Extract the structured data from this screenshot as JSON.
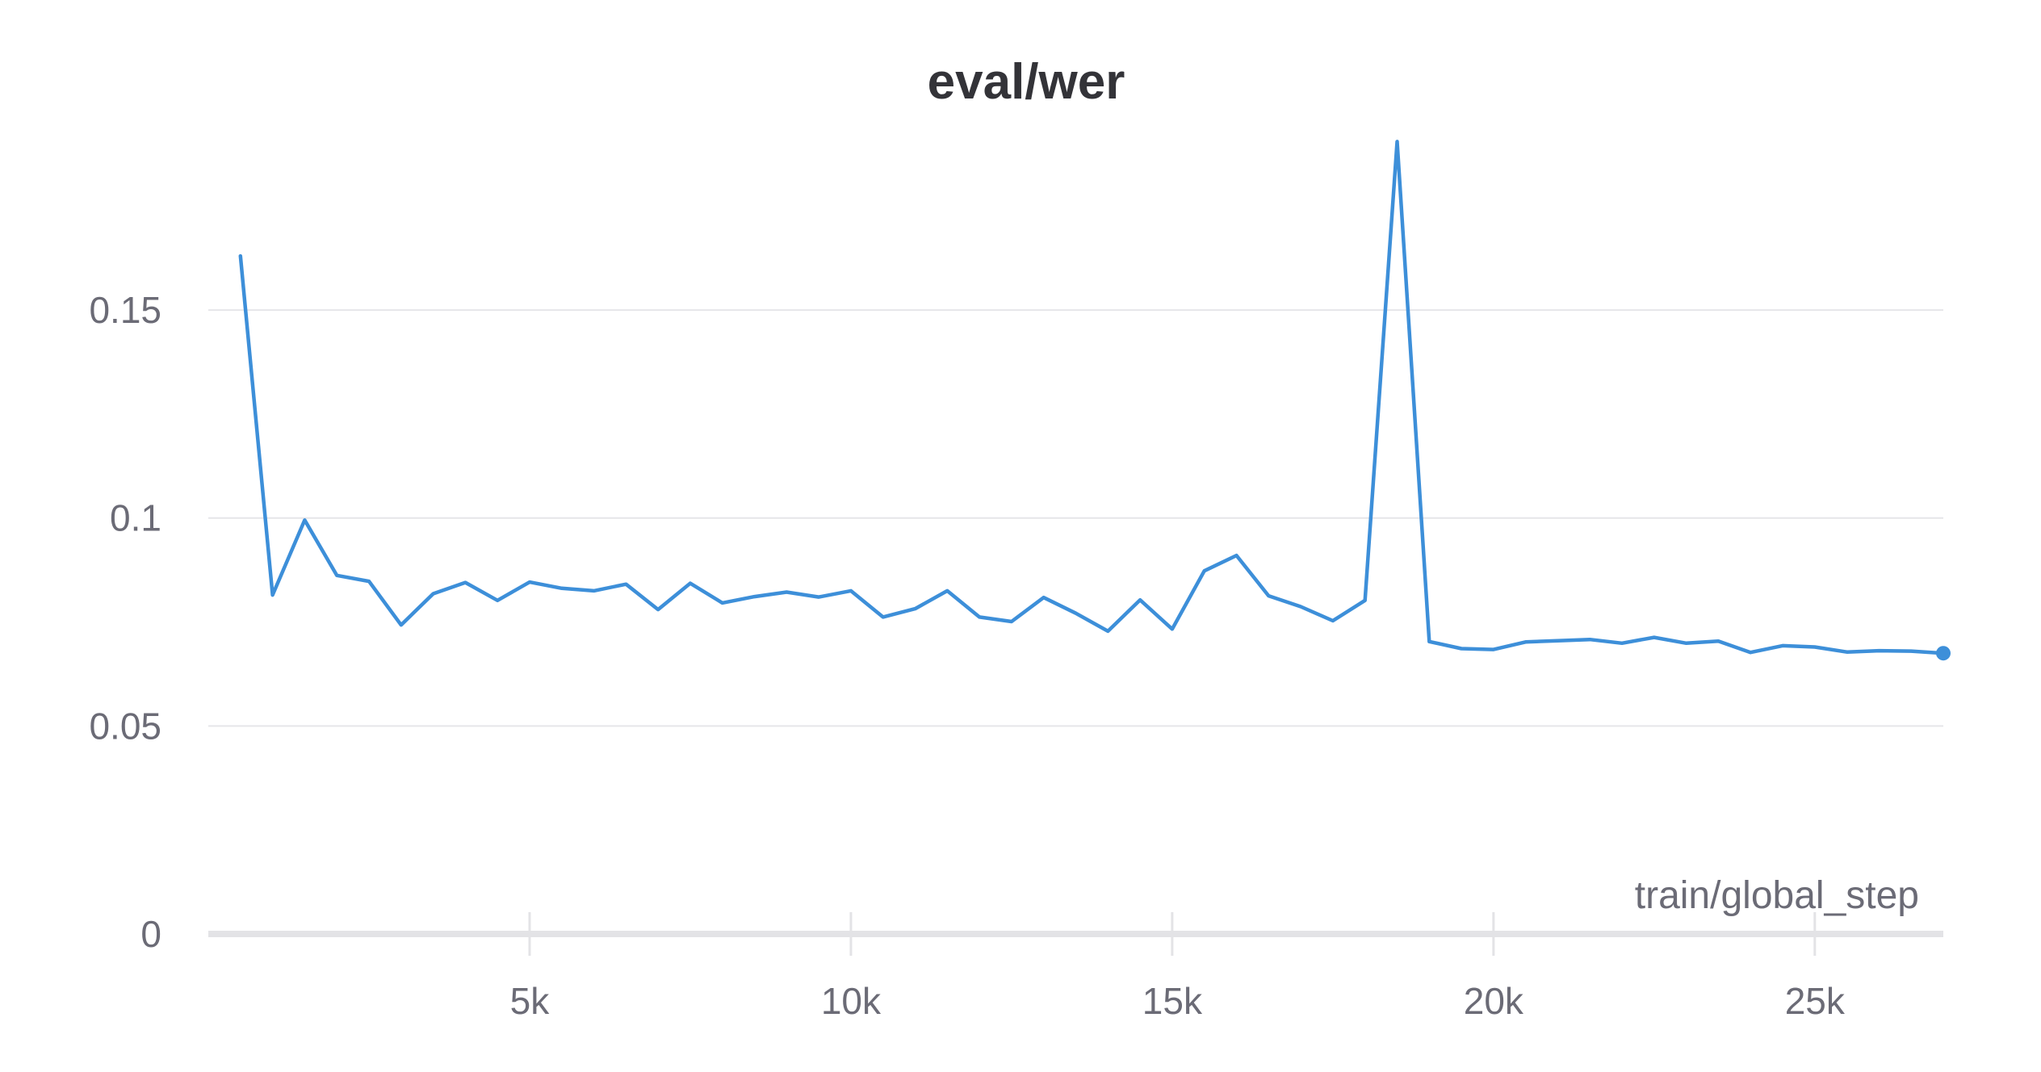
{
  "chart_data": {
    "type": "line",
    "title": "eval/wer",
    "xlabel": "train/global_step",
    "ylabel": "",
    "xlim": [
      0,
      27000
    ],
    "ylim": [
      0,
      0.19
    ],
    "x_ticks": [
      5000,
      10000,
      15000,
      20000,
      25000
    ],
    "x_tick_labels": [
      "5k",
      "10k",
      "15k",
      "20k",
      "25k"
    ],
    "y_ticks": [
      0,
      0.05,
      0.1,
      0.15
    ],
    "y_tick_labels": [
      "0",
      "0.05",
      "0.1",
      "0.15"
    ],
    "grid": true,
    "legend": "none",
    "color": "#3d8fd9",
    "series": [
      {
        "x": [
          500,
          1000,
          1500,
          2000,
          2500,
          3000,
          3500,
          4000,
          4500,
          5000,
          5500,
          6000,
          6500,
          7000,
          7500,
          8000,
          8500,
          9000,
          9500,
          10000,
          10500,
          11000,
          11500,
          12000,
          12500,
          13000,
          13500,
          14000,
          14500,
          15000,
          15500,
          16000,
          16500,
          17000,
          17500,
          18000,
          18500,
          19000,
          19500,
          20000,
          20500,
          21000,
          21500,
          22000,
          22500,
          23000,
          23500,
          24000,
          24500,
          25000,
          25500,
          26000,
          26500,
          27000
        ],
        "y": [
          0.163,
          0.0815,
          0.0995,
          0.0862,
          0.0848,
          0.0743,
          0.0818,
          0.0845,
          0.0802,
          0.0846,
          0.0831,
          0.0825,
          0.0841,
          0.078,
          0.0843,
          0.0796,
          0.0811,
          0.0822,
          0.081,
          0.0825,
          0.0762,
          0.0782,
          0.0825,
          0.0762,
          0.0751,
          0.0809,
          0.0771,
          0.0728,
          0.0803,
          0.0733,
          0.0873,
          0.091,
          0.0813,
          0.0787,
          0.0753,
          0.0802,
          0.1905,
          0.0703,
          0.0686,
          0.0684,
          0.0702,
          0.0705,
          0.0708,
          0.0699,
          0.0713,
          0.0699,
          0.0704,
          0.0677,
          0.0693,
          0.069,
          0.0678,
          0.0681,
          0.068,
          0.0675
        ]
      }
    ]
  }
}
